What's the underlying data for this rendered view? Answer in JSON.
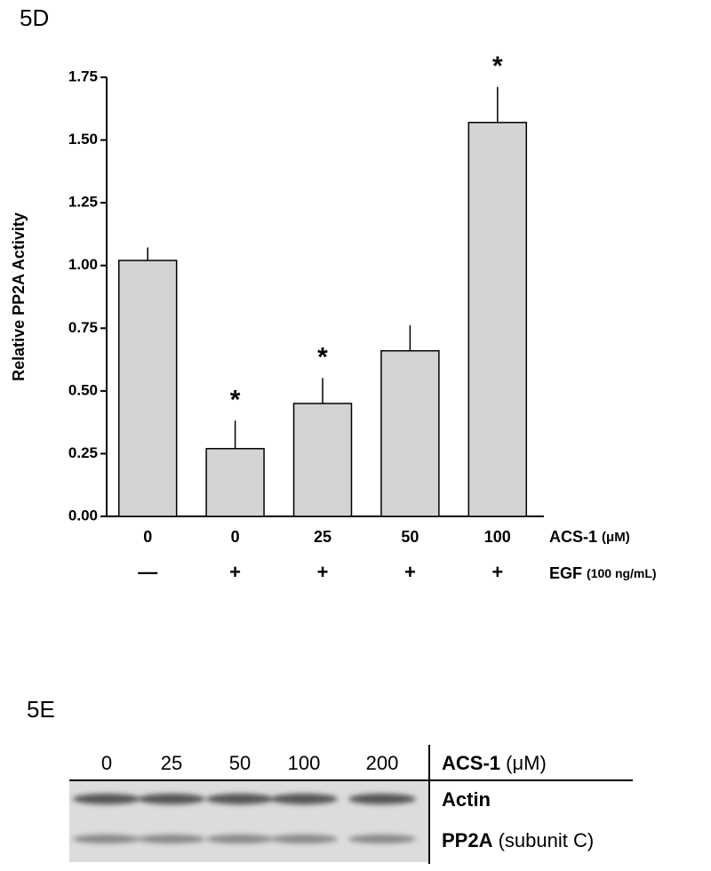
{
  "chart_data": {
    "type": "bar",
    "title": "5D",
    "ylabel": "Relative PP2A Activity",
    "categories": [
      "0",
      "0",
      "25",
      "50",
      "100"
    ],
    "xlabel": {
      "name": "ACS-1",
      "unit": "(μM)"
    },
    "categories2": [
      "—",
      "+",
      "+",
      "+",
      "+"
    ],
    "xlabel2": {
      "name": "EGF",
      "unit": "(100 ng/mL)"
    },
    "values": [
      1.02,
      0.27,
      0.45,
      0.66,
      1.57
    ],
    "errors": [
      0.05,
      0.11,
      0.1,
      0.1,
      0.14
    ],
    "annotations": [
      null,
      "*",
      "*",
      null,
      "*"
    ],
    "color": "#d3d3d3",
    "ylim": [
      0,
      1.75
    ],
    "yticks": [
      {
        "value": 0,
        "label": "0.00"
      },
      {
        "value": 0.25,
        "label": "0.25"
      },
      {
        "value": 0.5,
        "label": "0.50"
      },
      {
        "value": 0.75,
        "label": "0.75"
      },
      {
        "value": 1,
        "label": "1.00"
      },
      {
        "value": 1.25,
        "label": "1.25"
      },
      {
        "value": 1.5,
        "label": "1.50"
      },
      {
        "value": 1.75,
        "label": "1.75"
      }
    ],
    "grid": false
  },
  "blot": {
    "title": "5E",
    "lanes": [
      "0",
      "25",
      "50",
      "100",
      "200"
    ],
    "header": {
      "name": "ACS-1",
      "unit": "(μM)"
    },
    "rows": [
      {
        "name": "Actin"
      },
      {
        "name": "PP2A",
        "detail": "(subunit C)"
      }
    ]
  }
}
